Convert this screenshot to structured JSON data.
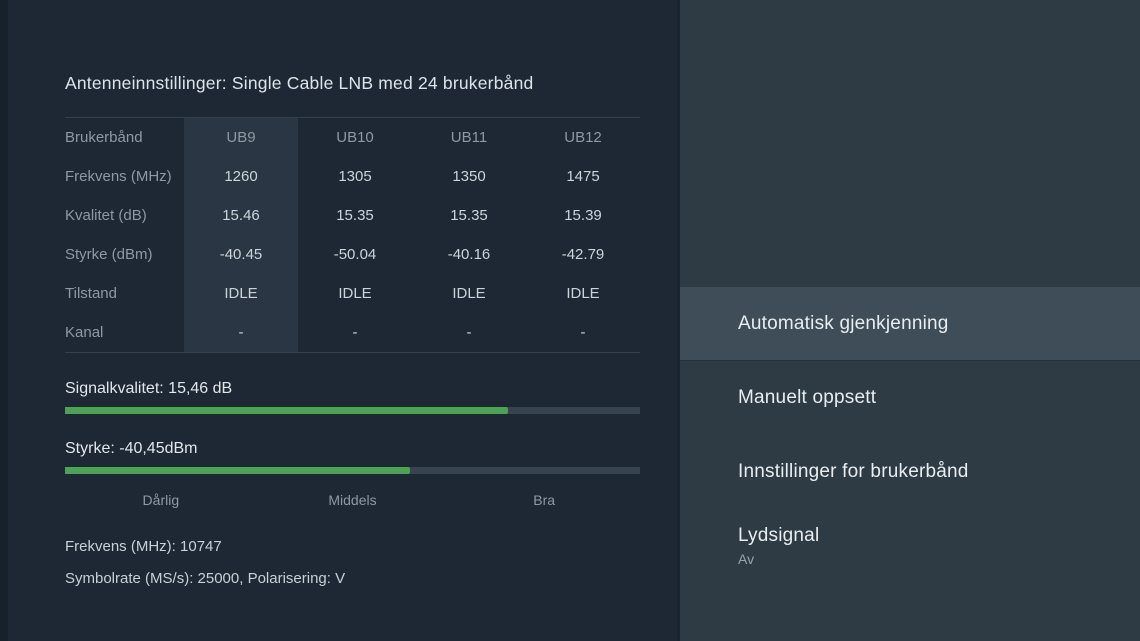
{
  "header": {
    "title": "Antenneinnstillinger: Single Cable LNB med 24 brukerbånd"
  },
  "table": {
    "label_header": "Brukerbånd",
    "columns": [
      "UB9",
      "UB10",
      "UB11",
      "UB12"
    ],
    "selected_column": "UB9",
    "rows": [
      {
        "label": "Frekvens (MHz)",
        "values": [
          "1260",
          "1305",
          "1350",
          "1475"
        ]
      },
      {
        "label": "Kvalitet (dB)",
        "values": [
          "15.46",
          "15.35",
          "15.35",
          "15.39"
        ]
      },
      {
        "label": "Styrke (dBm)",
        "values": [
          "-40.45",
          "-50.04",
          "-40.16",
          "-42.79"
        ]
      },
      {
        "label": "Tilstand",
        "values": [
          "IDLE",
          "IDLE",
          "IDLE",
          "IDLE"
        ]
      },
      {
        "label": "Kanal",
        "values": [
          "-",
          "-",
          "-",
          "-"
        ]
      }
    ]
  },
  "signal": {
    "quality_label": "Signalkvalitet: 15,46 dB",
    "quality_percent": 77,
    "strength_label": "Styrke: -40,45dBm",
    "strength_percent": 60,
    "scale_labels": [
      "Dårlig",
      "Middels",
      "Bra"
    ]
  },
  "details": {
    "frequency": "Frekvens (MHz): 10747",
    "symbolrate": "Symbolrate (MS/s): 25000, Polarisering: V"
  },
  "menu": {
    "items": [
      {
        "label": "Automatisk gjenkjenning",
        "selected": true
      },
      {
        "label": "Manuelt oppsett",
        "selected": false
      },
      {
        "label": "Innstillinger for brukerbånd",
        "selected": false
      },
      {
        "label": "Lydsignal",
        "sublabel": "Av",
        "selected": false
      }
    ]
  },
  "colors": {
    "background": "#1d2834",
    "panel": "#2e3b45",
    "selected_item": "#3e4d58",
    "column_highlight": "#2a3643",
    "bar_track": "#37434e",
    "bar_fill": "#4da354"
  }
}
